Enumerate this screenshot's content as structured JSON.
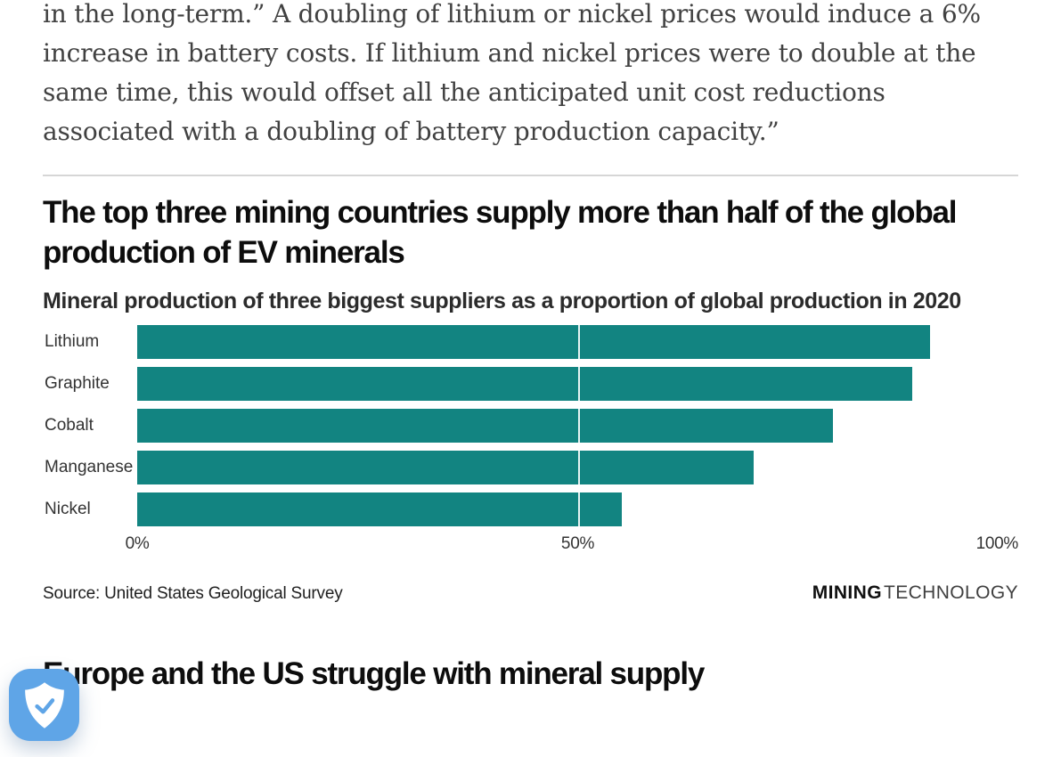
{
  "article": {
    "paragraph": "in the long-term.” A doubling of lithium or nickel prices would induce a 6% increase in battery costs. If lithium and nickel prices were to double at the same time, this would offset all the anticipated unit cost reductions associated with a doubling of battery production capacity.”",
    "next_section_heading": "Europe and the US struggle with mineral supply"
  },
  "chart_data": {
    "type": "bar",
    "orientation": "horizontal",
    "title": "The top three mining countries supply more than half of the global production of EV minerals",
    "subtitle": "Mineral production of three biggest suppliers as a proportion of global production in 2020",
    "categories": [
      "Lithium",
      "Graphite",
      "Cobalt",
      "Manganese",
      "Nickel"
    ],
    "values": [
      90,
      88,
      79,
      70,
      55
    ],
    "unit": "%",
    "xlim": [
      0,
      100
    ],
    "tick_labels": [
      "0%",
      "50%",
      "100%"
    ],
    "gridline_at": 50,
    "grid_on": true,
    "legend": "none",
    "bar_color": "#128481",
    "source": "Source: United States Geological Survey",
    "logo": {
      "bold": "MINING",
      "light": "TECHNOLOGY"
    }
  },
  "colors": {
    "bar_teal": "#128481",
    "divider_gray": "#d6d6d6",
    "heading_black": "#0d0d0d",
    "body_gray": "#414141",
    "badge_blue": "#5fa5e7"
  },
  "badge": {
    "icon": "shield-check"
  }
}
